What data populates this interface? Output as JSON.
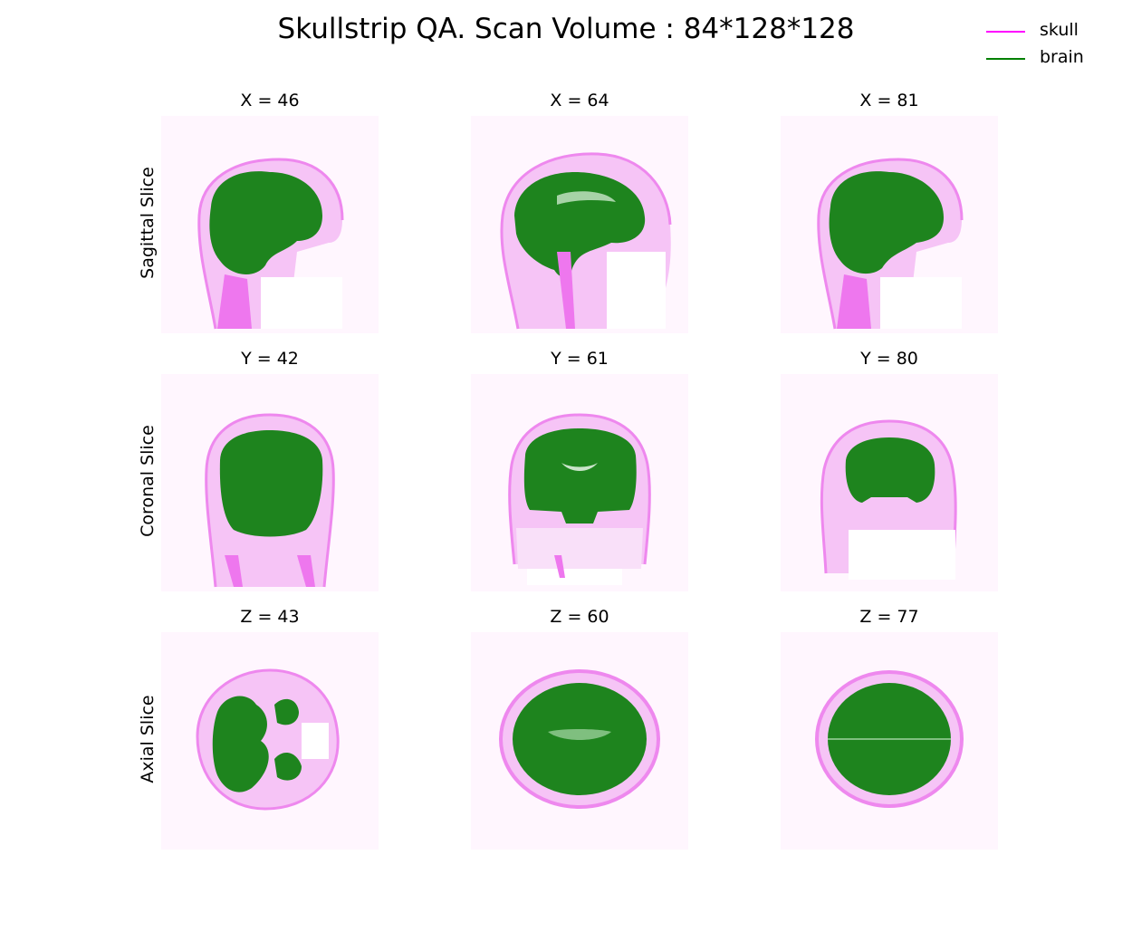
{
  "title": "Skullstrip QA. Scan Volume : 84*128*128",
  "legend": [
    {
      "label": "skull",
      "color": "#ff00ff"
    },
    {
      "label": "brain",
      "color": "#008000"
    }
  ],
  "colors": {
    "skull": "#f4a6f4",
    "skull_dark": "#ee66ee",
    "brain": "#1e841e"
  },
  "rows": [
    {
      "label": "Sagittal Slice",
      "panels": [
        {
          "title": "X = 46"
        },
        {
          "title": "X = 64"
        },
        {
          "title": "X = 81"
        }
      ]
    },
    {
      "label": "Coronal Slice",
      "panels": [
        {
          "title": "Y = 42"
        },
        {
          "title": "Y = 61"
        },
        {
          "title": "Y = 80"
        }
      ]
    },
    {
      "label": "Axial Slice",
      "panels": [
        {
          "title": "Z = 43"
        },
        {
          "title": "Z = 60"
        },
        {
          "title": "Z = 77"
        }
      ]
    }
  ]
}
